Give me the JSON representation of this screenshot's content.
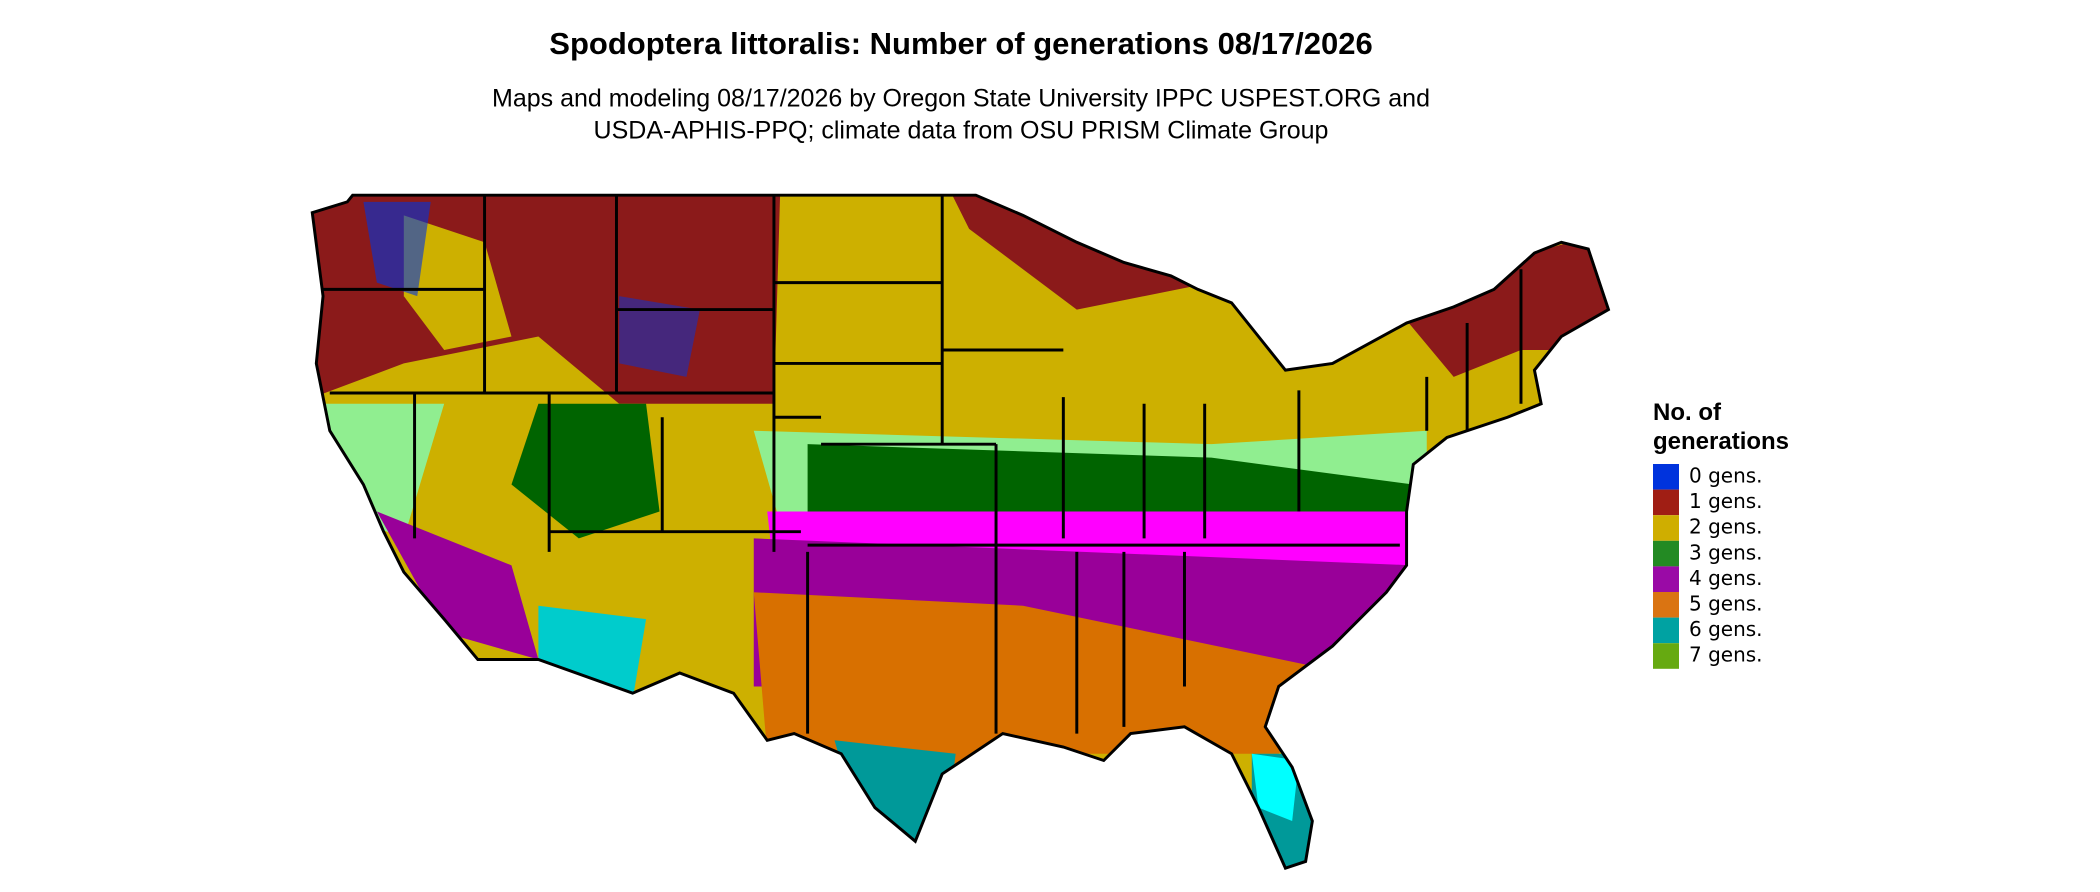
{
  "header": {
    "title": "Spodoptera littoralis: Number of generations 08/17/2026",
    "subtitle": [
      "Maps and modeling 08/17/2026 by Oregon State University IPPC USPEST.ORG and",
      "USDA-APHIS-PPQ; climate data from OSU PRISM Climate Group"
    ]
  },
  "legend": {
    "title": [
      "No. of",
      "generations"
    ],
    "items": [
      {
        "label": "0 gens.",
        "color": "#0033dd"
      },
      {
        "label": "1 gens.",
        "color": "#a01e14"
      },
      {
        "label": "2 gens.",
        "color": "#cfae00"
      },
      {
        "label": "3 gens.",
        "color": "#238a23"
      },
      {
        "label": "4 gens.",
        "color": "#9a0aa6"
      },
      {
        "label": "5 gens.",
        "color": "#da7412"
      },
      {
        "label": "6 gens.",
        "color": "#00a2a2"
      },
      {
        "label": "7 gens.",
        "color": "#66aa11"
      }
    ]
  }
}
